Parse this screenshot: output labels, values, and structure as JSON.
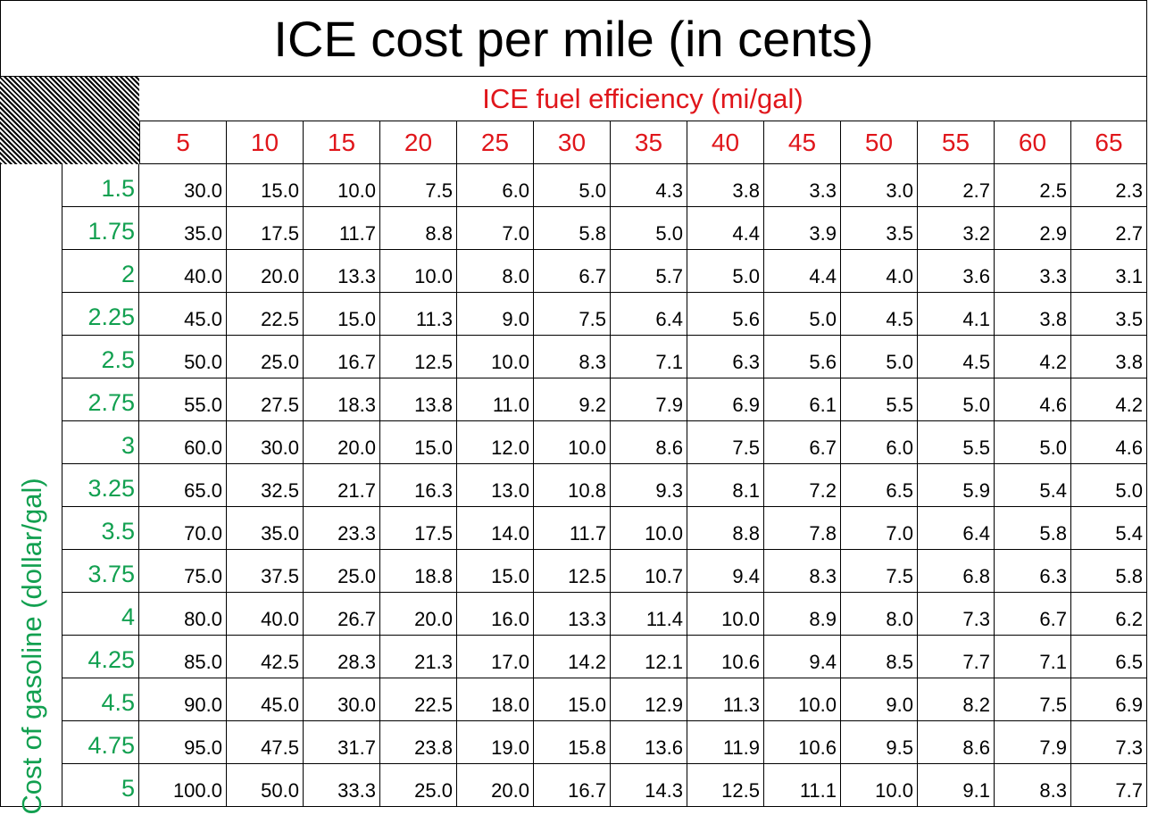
{
  "chart_data": {
    "type": "table",
    "title": "ICE cost per mile (in cents)",
    "xlabel": "ICE fuel efficiency (mi/gal)",
    "ylabel": "Cost of gasoline (dollar/gal)",
    "columns": [
      "5",
      "10",
      "15",
      "20",
      "25",
      "30",
      "35",
      "40",
      "45",
      "50",
      "55",
      "60",
      "65"
    ],
    "rows": [
      {
        "label": "1.5",
        "values": [
          "30.0",
          "15.0",
          "10.0",
          "7.5",
          "6.0",
          "5.0",
          "4.3",
          "3.8",
          "3.3",
          "3.0",
          "2.7",
          "2.5",
          "2.3"
        ]
      },
      {
        "label": "1.75",
        "values": [
          "35.0",
          "17.5",
          "11.7",
          "8.8",
          "7.0",
          "5.8",
          "5.0",
          "4.4",
          "3.9",
          "3.5",
          "3.2",
          "2.9",
          "2.7"
        ]
      },
      {
        "label": "2",
        "values": [
          "40.0",
          "20.0",
          "13.3",
          "10.0",
          "8.0",
          "6.7",
          "5.7",
          "5.0",
          "4.4",
          "4.0",
          "3.6",
          "3.3",
          "3.1"
        ]
      },
      {
        "label": "2.25",
        "values": [
          "45.0",
          "22.5",
          "15.0",
          "11.3",
          "9.0",
          "7.5",
          "6.4",
          "5.6",
          "5.0",
          "4.5",
          "4.1",
          "3.8",
          "3.5"
        ]
      },
      {
        "label": "2.5",
        "values": [
          "50.0",
          "25.0",
          "16.7",
          "12.5",
          "10.0",
          "8.3",
          "7.1",
          "6.3",
          "5.6",
          "5.0",
          "4.5",
          "4.2",
          "3.8"
        ]
      },
      {
        "label": "2.75",
        "values": [
          "55.0",
          "27.5",
          "18.3",
          "13.8",
          "11.0",
          "9.2",
          "7.9",
          "6.9",
          "6.1",
          "5.5",
          "5.0",
          "4.6",
          "4.2"
        ]
      },
      {
        "label": "3",
        "values": [
          "60.0",
          "30.0",
          "20.0",
          "15.0",
          "12.0",
          "10.0",
          "8.6",
          "7.5",
          "6.7",
          "6.0",
          "5.5",
          "5.0",
          "4.6"
        ]
      },
      {
        "label": "3.25",
        "values": [
          "65.0",
          "32.5",
          "21.7",
          "16.3",
          "13.0",
          "10.8",
          "9.3",
          "8.1",
          "7.2",
          "6.5",
          "5.9",
          "5.4",
          "5.0"
        ]
      },
      {
        "label": "3.5",
        "values": [
          "70.0",
          "35.0",
          "23.3",
          "17.5",
          "14.0",
          "11.7",
          "10.0",
          "8.8",
          "7.8",
          "7.0",
          "6.4",
          "5.8",
          "5.4"
        ]
      },
      {
        "label": "3.75",
        "values": [
          "75.0",
          "37.5",
          "25.0",
          "18.8",
          "15.0",
          "12.5",
          "10.7",
          "9.4",
          "8.3",
          "7.5",
          "6.8",
          "6.3",
          "5.8"
        ]
      },
      {
        "label": "4",
        "values": [
          "80.0",
          "40.0",
          "26.7",
          "20.0",
          "16.0",
          "13.3",
          "11.4",
          "10.0",
          "8.9",
          "8.0",
          "7.3",
          "6.7",
          "6.2"
        ]
      },
      {
        "label": "4.25",
        "values": [
          "85.0",
          "42.5",
          "28.3",
          "21.3",
          "17.0",
          "14.2",
          "12.1",
          "10.6",
          "9.4",
          "8.5",
          "7.7",
          "7.1",
          "6.5"
        ]
      },
      {
        "label": "4.5",
        "values": [
          "90.0",
          "45.0",
          "30.0",
          "22.5",
          "18.0",
          "15.0",
          "12.9",
          "11.3",
          "10.0",
          "9.0",
          "8.2",
          "7.5",
          "6.9"
        ]
      },
      {
        "label": "4.75",
        "values": [
          "95.0",
          "47.5",
          "31.7",
          "23.8",
          "19.0",
          "15.8",
          "13.6",
          "11.9",
          "10.6",
          "9.5",
          "8.6",
          "7.9",
          "7.3"
        ]
      },
      {
        "label": "5",
        "values": [
          "100.0",
          "50.0",
          "33.3",
          "25.0",
          "20.0",
          "16.7",
          "14.3",
          "12.5",
          "11.1",
          "10.0",
          "9.1",
          "8.3",
          "7.7"
        ]
      }
    ],
    "colors": {
      "header_text": "#e0161b",
      "row_header_text": "#12a050",
      "value_text": "#000000"
    }
  }
}
